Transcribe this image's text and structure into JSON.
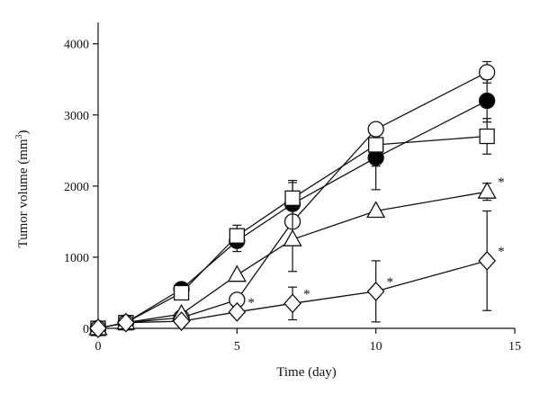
{
  "chart_data": {
    "type": "line",
    "title": "",
    "xlabel": "Time (day)",
    "ylabel": "Tumor volume (mm",
    "ylabel_sup": "3",
    "ylabel_close": ")",
    "xlim": [
      0,
      15
    ],
    "ylim": [
      0,
      4300
    ],
    "xticks": [
      0,
      5,
      10,
      15
    ],
    "yticks": [
      0,
      1000,
      2000,
      3000,
      4000
    ],
    "grid": false,
    "legend": "none",
    "series": [
      {
        "marker": "filled-circle",
        "x": [
          0,
          1,
          3,
          5,
          7,
          10,
          14
        ],
        "values": [
          0,
          80,
          550,
          1230,
          1750,
          2400,
          3200
        ],
        "error": [
          0,
          0,
          0,
          150,
          300,
          450,
          300
        ],
        "significance": [
          "",
          "",
          "",
          "",
          "",
          "",
          ""
        ]
      },
      {
        "marker": "open-square",
        "x": [
          0,
          1,
          3,
          5,
          7,
          10,
          14
        ],
        "values": [
          0,
          80,
          500,
          1300,
          1830,
          2580,
          2700
        ],
        "error": [
          0,
          0,
          0,
          150,
          250,
          300,
          250
        ],
        "significance": [
          "",
          "",
          "",
          "",
          "",
          "",
          ""
        ]
      },
      {
        "marker": "open-circle",
        "x": [
          0,
          1,
          3,
          5,
          7,
          10,
          14
        ],
        "values": [
          0,
          80,
          150,
          400,
          1500,
          2800,
          3600
        ],
        "error": [
          0,
          0,
          0,
          0,
          0,
          0,
          150
        ],
        "significance": [
          "",
          "",
          "",
          "",
          "",
          "",
          ""
        ]
      },
      {
        "marker": "open-triangle",
        "x": [
          0,
          1,
          3,
          5,
          7,
          10,
          14
        ],
        "values": [
          0,
          80,
          200,
          750,
          1250,
          1650,
          1920
        ],
        "error": [
          0,
          0,
          0,
          0,
          450,
          0,
          120
        ],
        "significance": [
          "",
          "",
          "",
          "",
          "",
          "",
          "*"
        ]
      },
      {
        "marker": "open-diamond",
        "x": [
          0,
          1,
          3,
          5,
          7,
          10,
          14
        ],
        "values": [
          0,
          80,
          100,
          230,
          350,
          520,
          950
        ],
        "error": [
          0,
          0,
          0,
          0,
          230,
          430,
          700
        ],
        "significance": [
          "",
          "",
          "",
          "*",
          "*",
          "*",
          "*"
        ]
      }
    ]
  }
}
